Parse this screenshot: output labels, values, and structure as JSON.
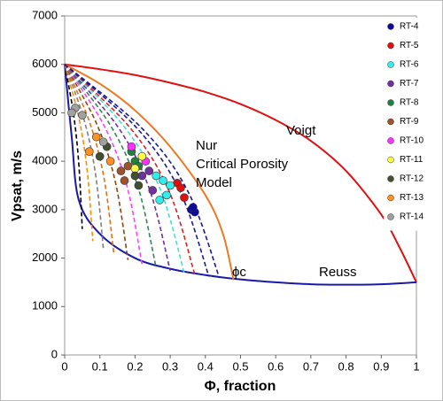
{
  "chart_data": {
    "type": "scatter",
    "x_label": "Φ, fraction",
    "y_label": "Vpsat, m/s",
    "xlim": [
      0,
      1
    ],
    "ylim": [
      0,
      7000
    ],
    "xticks": [
      0,
      0.1,
      0.2,
      0.3,
      0.4,
      0.5,
      0.6,
      0.7,
      0.8,
      0.9,
      1
    ],
    "yticks": [
      0,
      1000,
      2000,
      3000,
      4000,
      5000,
      6000,
      7000
    ],
    "grid": false,
    "legend": "upper right",
    "annotations": [
      "Voigt",
      "Reuss",
      "Nur",
      "Critical Porosity",
      "Model",
      "ϕc"
    ],
    "series": [
      {
        "name": "RT-4",
        "color": "#0c0c9c",
        "x": [
          0.36,
          0.37,
          0.365
        ],
        "y": [
          3000,
          2950,
          3050
        ]
      },
      {
        "name": "RT-5",
        "color": "#e01010",
        "x": [
          0.32,
          0.34,
          0.33
        ],
        "y": [
          3550,
          3250,
          3450
        ]
      },
      {
        "name": "RT-6",
        "color": "#30eeee",
        "x": [
          0.27,
          0.28,
          0.29,
          0.26,
          0.3
        ],
        "y": [
          3200,
          3600,
          3300,
          3700,
          3500
        ]
      },
      {
        "name": "RT-7",
        "color": "#7030a0",
        "x": [
          0.24,
          0.22,
          0.25
        ],
        "y": [
          3800,
          3700,
          3400
        ]
      },
      {
        "name": "RT-8",
        "color": "#208040",
        "x": [
          0.2,
          0.21,
          0.19
        ],
        "y": [
          4000,
          3900,
          4200
        ]
      },
      {
        "name": "RT-9",
        "color": "#a0522d",
        "x": [
          0.16,
          0.18,
          0.17
        ],
        "y": [
          3800,
          3900,
          3600
        ]
      },
      {
        "name": "RT-10",
        "color": "#ff30ff",
        "x": [
          0.19,
          0.23
        ],
        "y": [
          4300,
          4000
        ]
      },
      {
        "name": "RT-11",
        "color": "#ffff40",
        "x": [
          0.2,
          0.22
        ],
        "y": [
          3850,
          4100
        ]
      },
      {
        "name": "RT-12",
        "color": "#405030",
        "x": [
          0.1,
          0.12,
          0.2,
          0.21
        ],
        "y": [
          4100,
          4300,
          3700,
          3500
        ]
      },
      {
        "name": "RT-13",
        "color": "#ff9020",
        "x": [
          0.07,
          0.09,
          0.13
        ],
        "y": [
          4200,
          4500,
          4000
        ]
      },
      {
        "name": "RT-14",
        "color": "#a0a0a0",
        "x": [
          0.03,
          0.02,
          0.05,
          0.11
        ],
        "y": [
          5100,
          5000,
          4950,
          4400
        ]
      }
    ],
    "lines": [
      {
        "color": "#e01010",
        "dashed": false,
        "x": [
          0,
          0.1,
          0.2,
          0.3,
          0.4,
          0.5,
          0.6,
          0.7,
          0.8,
          0.9,
          0.95,
          1
        ],
        "y": [
          6000,
          5900,
          5780,
          5620,
          5430,
          5180,
          4850,
          4420,
          3800,
          2900,
          2250,
          1500
        ]
      },
      {
        "color": "#1a1aa8",
        "dashed": false,
        "x": [
          0,
          0.02,
          0.04,
          0.1,
          0.2,
          0.3,
          0.4,
          0.5,
          0.6,
          0.7,
          0.8,
          0.9,
          1
        ],
        "y": [
          6000,
          4500,
          3200,
          2500,
          2000,
          1780,
          1650,
          1560,
          1500,
          1460,
          1450,
          1460,
          1500
        ]
      },
      {
        "color": "#f07820",
        "dashed": false,
        "x": [
          0,
          0.1,
          0.2,
          0.3,
          0.4,
          0.45,
          0.48
        ],
        "y": [
          6000,
          5600,
          5050,
          4300,
          3300,
          2500,
          1550
        ]
      },
      {
        "color": "#000000",
        "dashed": true,
        "x": [
          0,
          0.025,
          0.04,
          0.05
        ],
        "y": [
          6000,
          4980,
          3960,
          2600
        ]
      },
      {
        "color": "#ff8c00",
        "dashed": true,
        "x": [
          0,
          0.04,
          0.064,
          0.08
        ],
        "y": [
          6000,
          4905,
          3810,
          2350
        ]
      },
      {
        "color": "#808080",
        "dashed": true,
        "x": [
          0,
          0.055,
          0.088,
          0.11
        ],
        "y": [
          6000,
          4860,
          3720,
          2200
        ]
      },
      {
        "color": "#e07010",
        "dashed": true,
        "x": [
          0,
          0.07,
          0.112,
          0.14
        ],
        "y": [
          6000,
          4824,
          3648,
          2080
        ]
      },
      {
        "color": "#8b4513",
        "dashed": true,
        "x": [
          0,
          0.09,
          0.144,
          0.18
        ],
        "y": [
          6000,
          4788,
          3576,
          1960
        ]
      },
      {
        "color": "#ff40ff",
        "dashed": true,
        "x": [
          0,
          0.11,
          0.176,
          0.22
        ],
        "y": [
          6000,
          4761,
          3522,
          1870
        ]
      },
      {
        "color": "#2e8b57",
        "dashed": true,
        "x": [
          0,
          0.13,
          0.208,
          0.26
        ],
        "y": [
          6000,
          4740,
          3480,
          1800
        ]
      },
      {
        "color": "#7030a0",
        "dashed": true,
        "x": [
          0,
          0.15,
          0.24,
          0.3
        ],
        "y": [
          6000,
          4722,
          3444,
          1740
        ]
      },
      {
        "color": "#40e0e0",
        "dashed": true,
        "x": [
          0,
          0.17,
          0.272,
          0.34
        ],
        "y": [
          6000,
          4707,
          3414,
          1690
        ]
      },
      {
        "color": "#e02020",
        "dashed": true,
        "x": [
          0,
          0.185,
          0.296,
          0.37
        ],
        "y": [
          6000,
          4698,
          3396,
          1660
        ]
      },
      {
        "color": "#1a1a90",
        "dashed": true,
        "x": [
          0,
          0.205,
          0.328,
          0.41
        ],
        "y": [
          6000,
          4686,
          3372,
          1620
        ]
      },
      {
        "color": "#1a1a90",
        "dashed": true,
        "x": [
          0,
          0.22,
          0.352,
          0.44
        ],
        "y": [
          6000,
          4677,
          3354,
          1590
        ]
      }
    ]
  }
}
